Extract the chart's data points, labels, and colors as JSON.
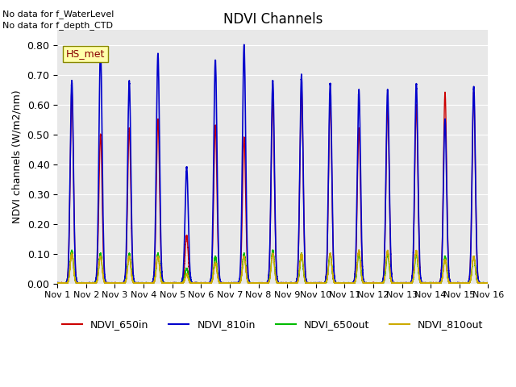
{
  "title": "NDVI Channels",
  "ylabel": "NDVI channels (W/m2/nm)",
  "ylim": [
    0.0,
    0.85
  ],
  "yticks": [
    0.0,
    0.1,
    0.2,
    0.3,
    0.4,
    0.5,
    0.6,
    0.7,
    0.8
  ],
  "bg_color": "#e8e8e8",
  "text_top_left": [
    "No data for f_WaterLevel",
    "No data for f_depth_CTD"
  ],
  "hs_met_label": "HS_met",
  "legend_entries": [
    "NDVI_650in",
    "NDVI_810in",
    "NDVI_650out",
    "NDVI_810out"
  ],
  "legend_colors": [
    "#cc0000",
    "#0000cc",
    "#00bb00",
    "#ccaa00"
  ],
  "colors": {
    "NDVI_650in": "#cc0000",
    "NDVI_810in": "#0000cc",
    "NDVI_650out": "#00bb00",
    "NDVI_810out": "#ccaa00"
  },
  "x_tick_labels": [
    "Nov 1",
    "Nov 2",
    "Nov 3",
    "Nov 4",
    "Nov 5",
    "Nov 6",
    "Nov 7",
    "Nov 8",
    "Nov 9",
    "Nov 10",
    "Nov 11",
    "Nov 12",
    "Nov 13",
    "Nov 14",
    "Nov 15",
    "Nov 16"
  ],
  "num_days": 15,
  "peaks": {
    "NDVI_650in": [
      0.65,
      0.5,
      0.52,
      0.55,
      0.16,
      0.53,
      0.49,
      0.62,
      0.66,
      0.62,
      0.52,
      0.6,
      0.6,
      0.64,
      0.64
    ],
    "NDVI_810in": [
      0.68,
      0.79,
      0.68,
      0.77,
      0.39,
      0.75,
      0.8,
      0.68,
      0.7,
      0.67,
      0.65,
      0.65,
      0.67,
      0.55,
      0.66
    ],
    "NDVI_650out": [
      0.11,
      0.1,
      0.1,
      0.1,
      0.05,
      0.09,
      0.1,
      0.11,
      0.1,
      0.1,
      0.1,
      0.1,
      0.1,
      0.09,
      0.09
    ],
    "NDVI_810out": [
      0.1,
      0.09,
      0.09,
      0.09,
      0.03,
      0.07,
      0.09,
      0.1,
      0.1,
      0.1,
      0.11,
      0.11,
      0.11,
      0.08,
      0.09
    ]
  }
}
